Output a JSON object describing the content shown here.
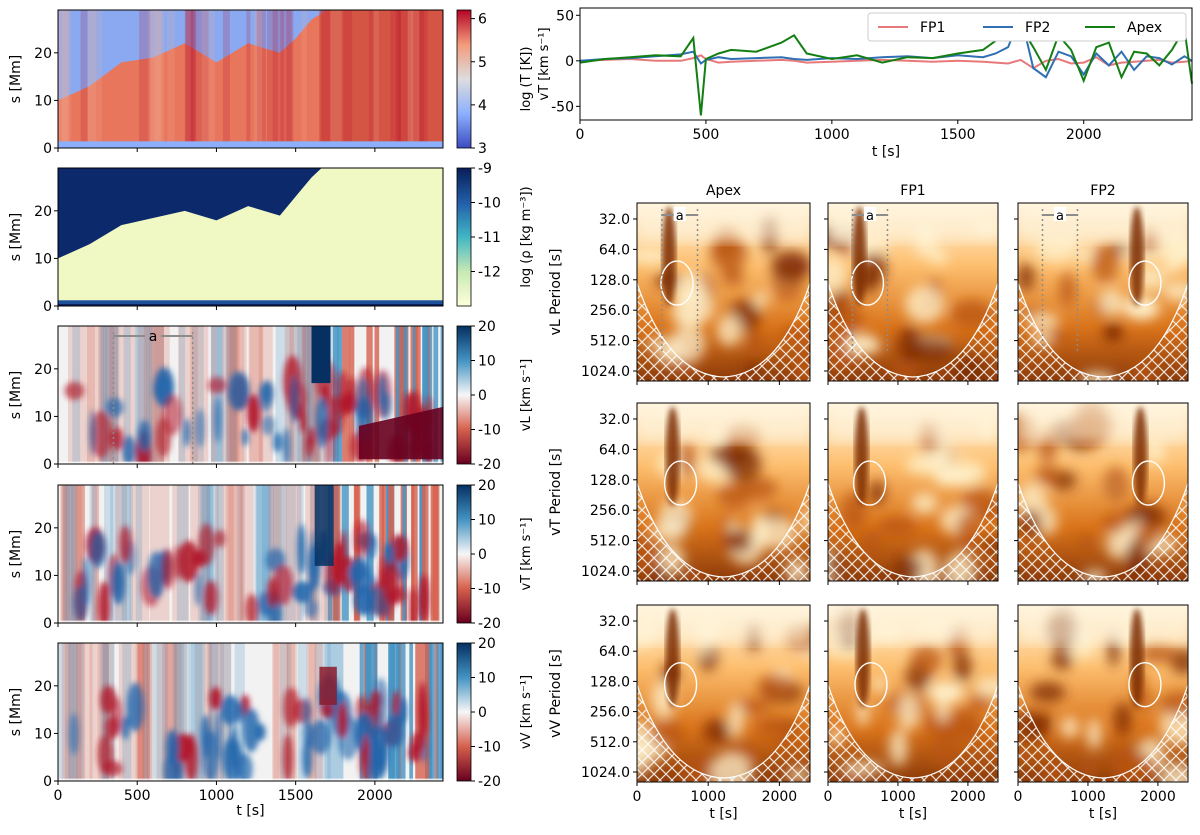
{
  "colors": {
    "fp1": "#e8797a",
    "fp2": "#2f6fb2",
    "apex": "#137f13",
    "hatch": "#ffffff",
    "marker": "#8c8c8c"
  },
  "chart_data": [
    {
      "id": "temperature",
      "type": "heatmap",
      "ylabel": "s [Mm]",
      "cbar_label": "log (T [K])",
      "cmap": "coolwarm",
      "clim": [
        3,
        6.2
      ],
      "cbar_ticks": [
        "6",
        "5",
        "4",
        "3"
      ],
      "yticks": [
        "0",
        "10",
        "20"
      ],
      "ylim": [
        0,
        29
      ],
      "xlim": [
        0,
        2430
      ],
      "xticks": [
        "0",
        "500",
        "1000",
        "1500",
        "2000"
      ],
      "description_series": {
        "name": "hot loop upper boundary s (Mm)",
        "t": [
          0,
          200,
          400,
          600,
          800,
          1000,
          1200,
          1400,
          1500,
          1600,
          1700,
          2430
        ],
        "s": [
          10,
          13,
          18,
          19,
          22,
          18,
          22,
          20,
          23,
          27,
          29,
          29
        ]
      }
    },
    {
      "id": "density",
      "type": "heatmap",
      "ylabel": "s [Mm]",
      "cbar_label": "log (ρ [kg m⁻³])",
      "cmap": "YlGnBu",
      "clim": [
        -13,
        -9
      ],
      "cbar_ticks": [
        "-9",
        "-10",
        "-11",
        "-12"
      ],
      "yticks": [
        "0",
        "10",
        "20"
      ],
      "ylim": [
        0,
        29
      ],
      "xlim": [
        0,
        2430
      ],
      "xticks": [
        "0",
        "500",
        "1000",
        "1500",
        "2000"
      ]
    },
    {
      "id": "vL",
      "type": "heatmap",
      "ylabel": "s [Mm]",
      "cbar_label": "vL [km s⁻¹]",
      "cmap": "RdBu",
      "clim": [
        -20,
        20
      ],
      "cbar_ticks": [
        "20",
        "10",
        "0",
        "-10",
        "-20"
      ],
      "yticks": [
        "0",
        "10",
        "20"
      ],
      "ylim": [
        0,
        29
      ],
      "xlim": [
        0,
        2430
      ],
      "xticks": [
        "0",
        "500",
        "1000",
        "1500",
        "2000"
      ],
      "interval_label": "a",
      "interval": [
        350,
        850
      ]
    },
    {
      "id": "vT",
      "type": "heatmap",
      "ylabel": "s [Mm]",
      "cbar_label": "vT [km s⁻¹]",
      "cmap": "RdBu",
      "clim": [
        -20,
        20
      ],
      "cbar_ticks": [
        "20",
        "10",
        "0",
        "-10",
        "-20"
      ],
      "yticks": [
        "0",
        "10",
        "20"
      ],
      "ylim": [
        0,
        29
      ],
      "xlim": [
        0,
        2430
      ],
      "xticks": [
        "0",
        "500",
        "1000",
        "1500",
        "2000"
      ]
    },
    {
      "id": "vV",
      "type": "heatmap",
      "ylabel": "s [Mm]",
      "xlabel": "t [s]",
      "cbar_label": "vV [km s⁻¹]",
      "cmap": "RdBu",
      "clim": [
        -20,
        20
      ],
      "cbar_ticks": [
        "20",
        "10",
        "0",
        "-10",
        "-20"
      ],
      "yticks": [
        "0",
        "10",
        "20"
      ],
      "ylim": [
        0,
        29
      ],
      "xlim": [
        0,
        2430
      ],
      "xticks": [
        "0",
        "500",
        "1000",
        "1500",
        "2000"
      ]
    },
    {
      "id": "vT-timeseries",
      "type": "line",
      "xlabel": "t [s]",
      "ylabel": "vT [km s⁻¹]",
      "xlim": [
        0,
        2430
      ],
      "ylim": [
        -65,
        58
      ],
      "xticks": [
        "0",
        "500",
        "1000",
        "1500",
        "2000"
      ],
      "yticks": [
        "50",
        "0",
        "-50"
      ],
      "legend": [
        "FP1",
        "FP2",
        "Apex"
      ],
      "legend_position": "top-right",
      "x": [
        0,
        100,
        200,
        300,
        400,
        450,
        480,
        500,
        550,
        600,
        700,
        800,
        850,
        900,
        1000,
        1100,
        1200,
        1300,
        1400,
        1500,
        1600,
        1650,
        1700,
        1750,
        1800,
        1850,
        1900,
        1950,
        2000,
        2050,
        2100,
        2150,
        2200,
        2250,
        2300,
        2350,
        2400,
        2430
      ],
      "series": [
        {
          "name": "FP1",
          "values": [
            0,
            1,
            2,
            0,
            0,
            3,
            6,
            2,
            -2,
            -1,
            0,
            1,
            0,
            -2,
            -1,
            0,
            1,
            0,
            -1,
            0,
            -1,
            -2,
            -3,
            1,
            -8,
            0,
            2,
            -3,
            -2,
            4,
            -5,
            -2,
            -1,
            0,
            1,
            -2,
            -1,
            0
          ]
        },
        {
          "name": "FP2",
          "values": [
            0,
            2,
            3,
            5,
            7,
            10,
            -3,
            1,
            4,
            2,
            3,
            4,
            2,
            1,
            3,
            2,
            4,
            5,
            3,
            6,
            4,
            8,
            15,
            50,
            -8,
            -18,
            10,
            5,
            -15,
            8,
            -5,
            10,
            -10,
            5,
            3,
            -4,
            5,
            0
          ]
        },
        {
          "name": "Apex",
          "values": [
            -2,
            2,
            4,
            6,
            5,
            25,
            -60,
            2,
            8,
            12,
            10,
            20,
            28,
            8,
            2,
            6,
            -2,
            4,
            3,
            8,
            12,
            22,
            30,
            38,
            15,
            -10,
            28,
            12,
            -22,
            15,
            20,
            -18,
            10,
            8,
            -5,
            12,
            35,
            -25
          ]
        }
      ]
    },
    {
      "id": "wavelets",
      "type": "heatmap",
      "description": "Wavelet power spectra with cone of influence (hatched) and significance contours",
      "columns": [
        "Apex",
        "FP1",
        "FP2"
      ],
      "rows": [
        "vL Period [s]",
        "vT Period [s]",
        "vV Period [s]"
      ],
      "period_ticks": [
        "32.0",
        "64.0",
        "128.0",
        "256.0",
        "512.0",
        "1024.0"
      ],
      "xticks": [
        "0",
        "1000",
        "2000"
      ],
      "xlabel": "t [s]",
      "xlim": [
        0,
        2430
      ],
      "interval_label": "a",
      "interval": [
        350,
        850
      ]
    }
  ]
}
